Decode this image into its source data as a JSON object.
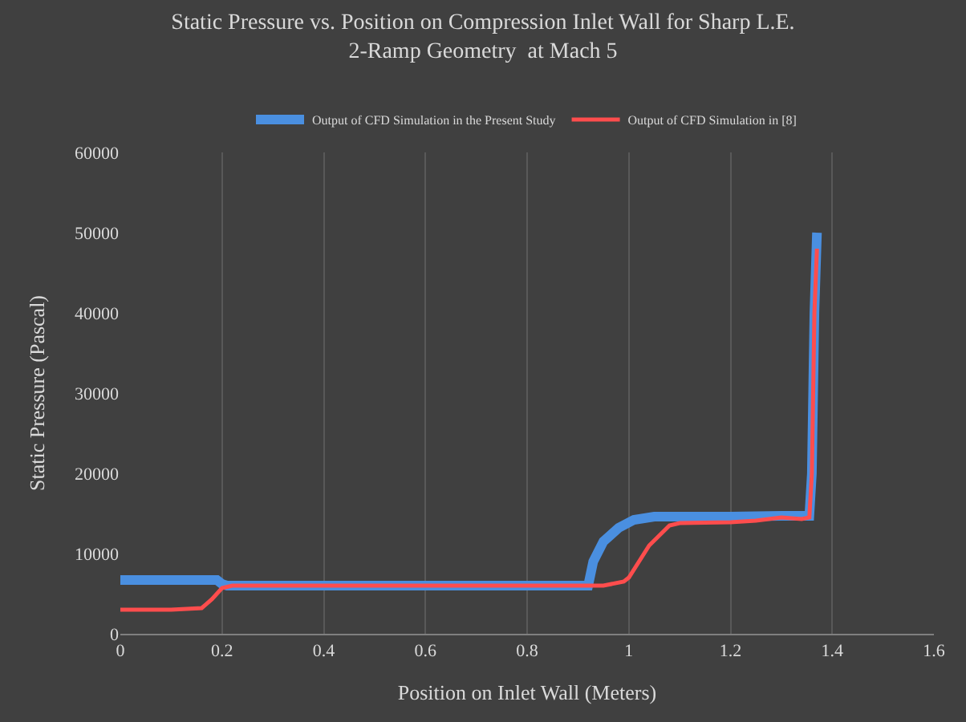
{
  "chart_data": {
    "type": "line",
    "title": "Static Pressure vs. Position on Compression Inlet Wall for Sharp L.E.\n2-Ramp Geometry  at Mach 5",
    "xlabel": "Position on Inlet Wall (Meters)",
    "ylabel": "Static Pressure (Pascal)",
    "xlim": [
      0,
      1.6
    ],
    "xticks": [
      0,
      0.2,
      0.4,
      0.6,
      0.8,
      1,
      1.2,
      1.4,
      1.6
    ],
    "ylim": [
      0,
      60000
    ],
    "yticks": [
      0,
      10000,
      20000,
      30000,
      40000,
      50000,
      60000
    ],
    "grid": "x",
    "legend": "top",
    "marker": "none",
    "line_style": "solid",
    "series": [
      {
        "name": "Output of CFD Simulation in the Present Study",
        "color": "#4a8fe0",
        "x": [
          0,
          0.1,
          0.19,
          0.2,
          0.21,
          0.5,
          0.8,
          0.92,
          0.93,
          0.95,
          0.98,
          1.01,
          1.05,
          1.1,
          1.2,
          1.3,
          1.355,
          1.36,
          1.365,
          1.37
        ],
        "values": [
          6700,
          6700,
          6700,
          6200,
          6000,
          6000,
          6000,
          6000,
          9000,
          11500,
          13200,
          14200,
          14600,
          14600,
          14600,
          14700,
          14700,
          20000,
          40000,
          50000
        ]
      },
      {
        "name": "Output of CFD Simulation in [8]",
        "color": "#ff4d4d",
        "x": [
          0,
          0.1,
          0.16,
          0.18,
          0.2,
          0.22,
          0.5,
          0.8,
          0.95,
          0.99,
          1.0,
          1.04,
          1.08,
          1.1,
          1.2,
          1.25,
          1.3,
          1.34,
          1.355,
          1.36,
          1.365,
          1.37
        ],
        "values": [
          3000,
          3000,
          3200,
          4300,
          5700,
          6000,
          6000,
          6000,
          6000,
          6500,
          7000,
          11000,
          13500,
          13800,
          13900,
          14100,
          14500,
          14300,
          14500,
          20000,
          40000,
          48000
        ]
      }
    ]
  }
}
